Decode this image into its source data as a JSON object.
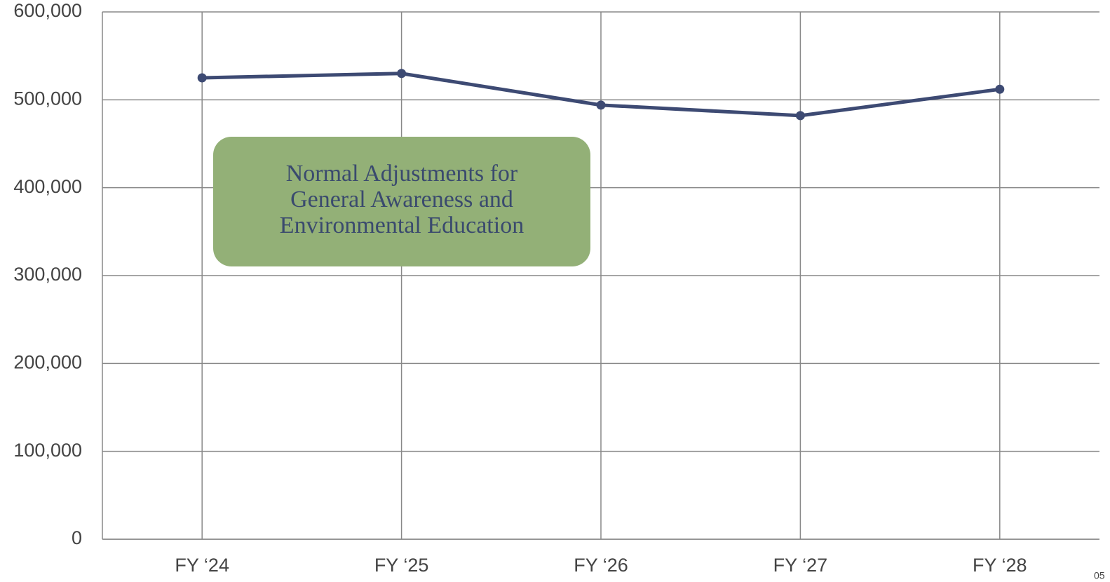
{
  "chart_data": {
    "type": "line",
    "categories": [
      "FY ‘24",
      "FY ‘25",
      "FY ‘26",
      "FY ‘27",
      "FY ‘28"
    ],
    "series": [
      {
        "name": null,
        "color": "#3d4a73",
        "values": [
          525000,
          530000,
          494000,
          482000,
          512000
        ]
      }
    ],
    "ylim": [
      0,
      600000
    ],
    "yticks": [
      0,
      {
        "value": 100000,
        "label": "100,000"
      },
      {
        "value": 200000,
        "label": "200,000"
      },
      {
        "value": 300000,
        "label": "300,000"
      },
      {
        "value": 400000,
        "label": "400,000"
      },
      {
        "value": 500000,
        "label": "500,000"
      },
      {
        "value": 600000,
        "label": "600,000"
      }
    ],
    "grid": true,
    "annotation": {
      "lines": [
        "Normal Adjustments for",
        "General Awareness and",
        "Environmental Education"
      ],
      "color": "#93b077"
    },
    "page_number": "05"
  }
}
